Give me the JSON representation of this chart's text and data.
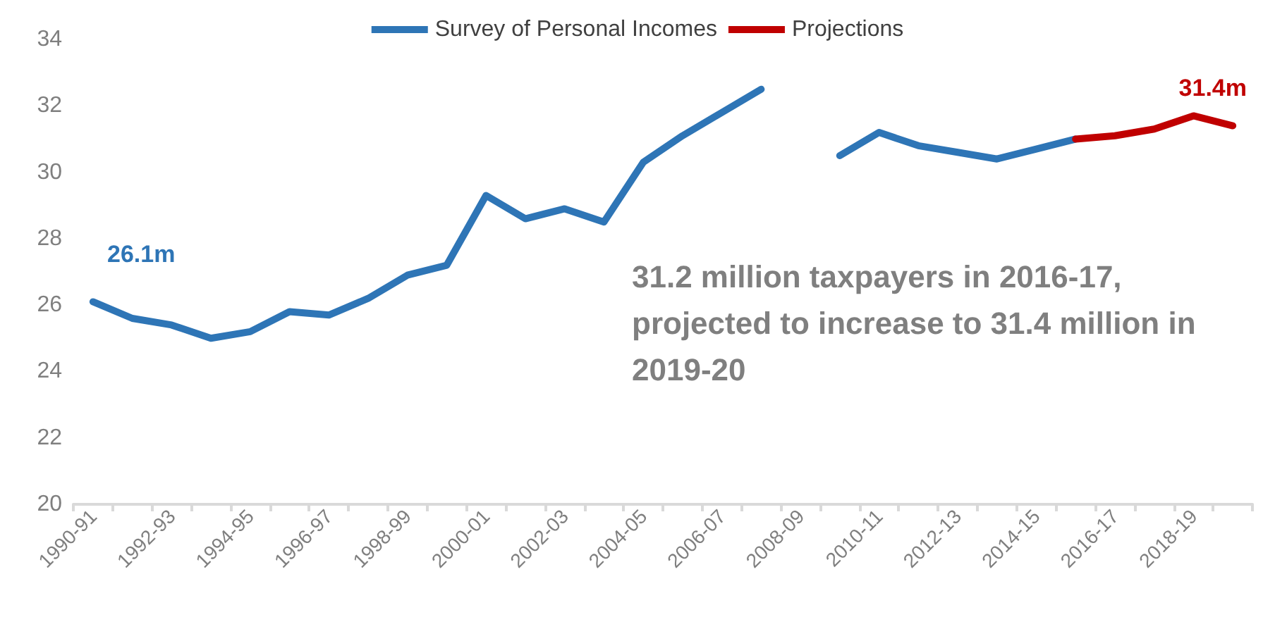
{
  "chart_data": {
    "type": "line",
    "categories": [
      "1990-91",
      null,
      "1992-93",
      null,
      "1994-95",
      null,
      "1996-97",
      null,
      "1998-99",
      null,
      "2000-01",
      null,
      "2002-03",
      null,
      "2004-05",
      null,
      "2006-07",
      null,
      "2008-09",
      null,
      "2010-11",
      null,
      "2012-13",
      null,
      "2014-15",
      null,
      "2016-17",
      null,
      "2018-19",
      null
    ],
    "series": [
      {
        "name": "Survey of Personal Incomes",
        "color": "#2e75b6",
        "values": [
          26.1,
          25.6,
          25.4,
          25.0,
          25.2,
          25.8,
          25.7,
          26.2,
          26.9,
          27.2,
          29.3,
          28.6,
          28.9,
          28.5,
          30.3,
          31.1,
          31.8,
          32.5,
          null,
          30.5,
          31.2,
          30.8,
          30.6,
          30.4,
          30.7,
          31.0,
          null,
          null,
          null,
          null
        ]
      },
      {
        "name": "Projections",
        "color": "#c00000",
        "values": [
          null,
          null,
          null,
          null,
          null,
          null,
          null,
          null,
          null,
          null,
          null,
          null,
          null,
          null,
          null,
          null,
          null,
          null,
          null,
          null,
          null,
          null,
          null,
          null,
          null,
          31.0,
          31.1,
          31.3,
          31.7,
          31.4
        ]
      }
    ],
    "ylim": [
      20,
      34
    ],
    "yticks": [
      20,
      22,
      24,
      26,
      28,
      30,
      32,
      34
    ],
    "legend": "top",
    "marker": "none",
    "line_style": "solid",
    "annotations": [
      "26.1m",
      "31.4m",
      "31.2 million taxpayers in 2016-17, projected to increase to 31.4 million in 2019-20"
    ]
  }
}
